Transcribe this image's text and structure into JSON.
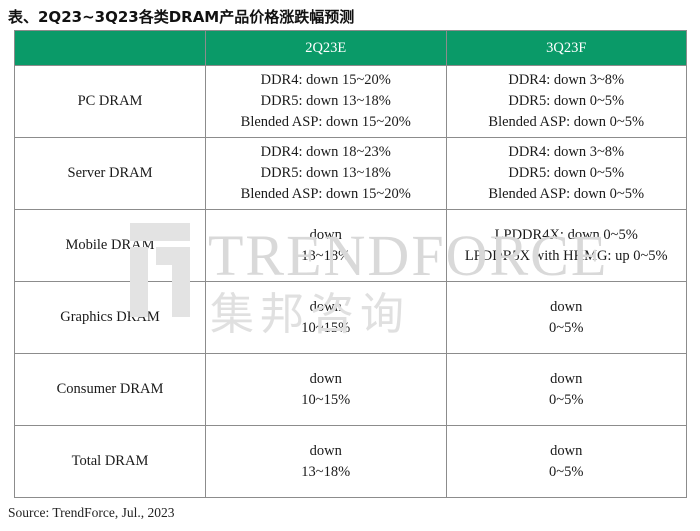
{
  "title": "表、2Q23~3Q23各类DRAM产品价格涨跌幅预测",
  "columns": [
    "",
    "2Q23E",
    "3Q23F"
  ],
  "rows": [
    {
      "label": "PC DRAM",
      "q2": [
        "DDR4: down 15~20%",
        "DDR5: down 13~18%",
        "Blended ASP: down 15~20%"
      ],
      "q3": [
        "DDR4: down 3~8%",
        "DDR5: down 0~5%",
        "Blended ASP: down 0~5%"
      ]
    },
    {
      "label": "Server DRAM",
      "q2": [
        "DDR4: down 18~23%",
        "DDR5: down 13~18%",
        "Blended ASP: down 15~20%"
      ],
      "q3": [
        "DDR4: down 3~8%",
        "DDR5: down 0~5%",
        "Blended ASP: down 0~5%"
      ]
    },
    {
      "label": "Mobile DRAM",
      "q2": [
        "down",
        "13~18%"
      ],
      "q3": [
        "LPDDR4X: down 0~5%",
        "LPDDR5X with HKMG: up 0~5%"
      ]
    },
    {
      "label": "Graphics DRAM",
      "q2": [
        "down",
        "10~15%"
      ],
      "q3": [
        "down",
        "0~5%"
      ]
    },
    {
      "label": "Consumer DRAM",
      "q2": [
        "down",
        "10~15%"
      ],
      "q3": [
        "down",
        "0~5%"
      ]
    },
    {
      "label": "Total DRAM",
      "q2": [
        "down",
        "13~18%"
      ],
      "q3": [
        "down",
        "0~5%"
      ]
    }
  ],
  "watermark": {
    "brand": "TRENDFORCE",
    "brand_cn": "集邦咨询"
  },
  "source": "Source: TrendForce, Jul., 2023",
  "colors": {
    "header_bg": "#0a9a68",
    "header_text": "#ffffff",
    "border": "#8c8c8c"
  }
}
